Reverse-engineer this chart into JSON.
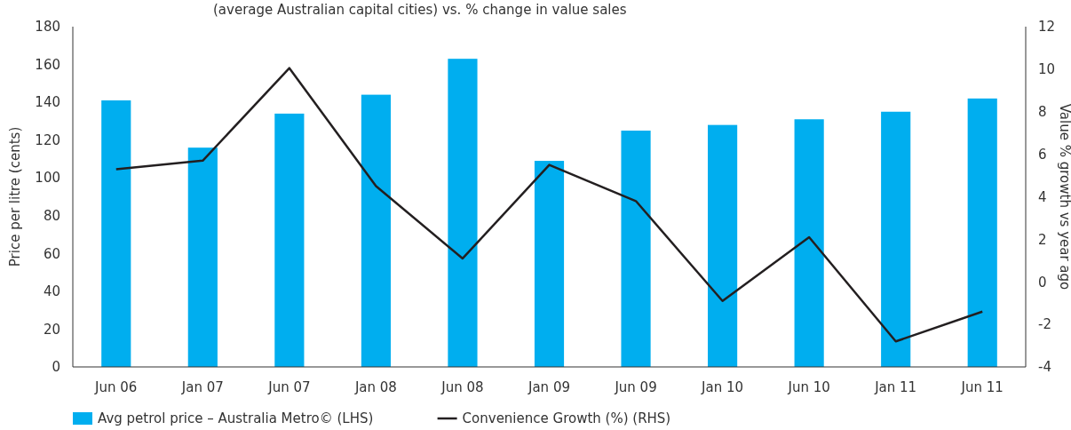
{
  "chart_data": {
    "type": "bar",
    "subtitle": "(average Australian capital cities) vs. % change in value sales",
    "ylabel": "Price per litre (cents)",
    "y2label": "Value % growth vs year ago",
    "categories": [
      "Jun 06",
      "Jan 07",
      "Jun 07",
      "Jan 08",
      "Jun 08",
      "Jan 09",
      "Jun 09",
      "Jan 10",
      "Jun 10",
      "Jan 11",
      "Jun 11"
    ],
    "series": [
      {
        "name": "Avg petrol price – Australia Metro© (LHS)",
        "color": "#00aeef",
        "values": [
          141,
          116,
          134,
          144,
          163,
          109,
          125,
          128,
          131,
          135,
          142
        ]
      },
      {
        "name": "Convenience Growth (%) (RHS)",
        "type": "line",
        "axis": "y2",
        "color": "#231f20",
        "values": [
          5.3,
          5.7,
          10.05,
          4.5,
          1.1,
          5.5,
          3.8,
          -0.9,
          2.1,
          -2.8,
          -1.4
        ]
      }
    ],
    "ylim": [
      0,
      180
    ],
    "yticks": [
      0,
      20,
      40,
      60,
      80,
      100,
      120,
      140,
      160,
      180
    ],
    "y2lim": [
      -4,
      12
    ],
    "y2ticks": [
      -4,
      -2,
      0,
      2,
      4,
      6,
      8,
      10,
      12
    ],
    "legend": "bottom left",
    "grid": false
  }
}
